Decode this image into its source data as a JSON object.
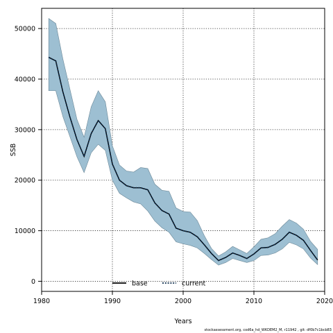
{
  "chart_data": {
    "type": "line",
    "title": "",
    "xlabel": "Years",
    "ylabel": "SSB",
    "xlim": [
      1980,
      2020
    ],
    "ylim": [
      -2000,
      54000
    ],
    "x_ticks": [
      1980,
      1990,
      2000,
      2010,
      2020
    ],
    "y_ticks": [
      0,
      10000,
      20000,
      30000,
      40000,
      50000
    ],
    "grid": true,
    "legend": {
      "placement": "bottom-center",
      "entries": [
        "base",
        "current"
      ]
    },
    "x": [
      1981,
      1982,
      1983,
      1984,
      1985,
      1986,
      1987,
      1988,
      1989,
      1990,
      1991,
      1992,
      1993,
      1994,
      1995,
      1996,
      1997,
      1998,
      1999,
      2000,
      2001,
      2002,
      2003,
      2004,
      2005,
      2006,
      2007,
      2008,
      2009,
      2010,
      2011,
      2012,
      2013,
      2014,
      2015,
      2016,
      2017,
      2018,
      2019
    ],
    "series": [
      {
        "name": "base",
        "style": "solid",
        "color": "#000000",
        "values": [
          44300,
          43600,
          37500,
          32500,
          28000,
          24700,
          29200,
          31800,
          30200,
          23200,
          20000,
          18900,
          18500,
          18500,
          18100,
          15500,
          14000,
          13300,
          10500,
          10000,
          9700,
          8800,
          7200,
          5500,
          4100,
          4700,
          5600,
          5100,
          4500,
          5400,
          6600,
          6700,
          7300,
          8300,
          9700,
          9100,
          8100,
          6100,
          4200
        ]
      },
      {
        "name": "current",
        "style": "dotted",
        "color": "#0a2a4a",
        "values": [
          44300,
          43600,
          37500,
          32500,
          28000,
          24700,
          29200,
          31800,
          30200,
          23200,
          20000,
          18900,
          18500,
          18500,
          18100,
          15500,
          14000,
          13300,
          10500,
          10000,
          9700,
          8800,
          7200,
          5500,
          4100,
          4700,
          5600,
          5100,
          4500,
          5400,
          6600,
          6700,
          7300,
          8300,
          9700,
          9100,
          8100,
          6100,
          4200
        ]
      },
      {
        "name": "",
        "role": "confidence-band-upper",
        "values": [
          52000,
          51000,
          44000,
          38000,
          32000,
          28500,
          34500,
          37700,
          35500,
          26800,
          23000,
          21800,
          21600,
          22500,
          22300,
          19200,
          18000,
          17800,
          14500,
          13800,
          13700,
          12000,
          9000,
          6500,
          5000,
          5800,
          6900,
          6200,
          5500,
          6800,
          8300,
          8600,
          9400,
          10900,
          12200,
          11500,
          10300,
          7900,
          6300
        ]
      },
      {
        "name": "",
        "role": "confidence-band-lower",
        "values": [
          37700,
          37700,
          32600,
          28600,
          24600,
          21500,
          25400,
          27100,
          25900,
          20000,
          17400,
          16500,
          15700,
          15300,
          13900,
          11900,
          10600,
          9700,
          7800,
          7400,
          7100,
          6600,
          5500,
          4300,
          3200,
          3700,
          4500,
          4100,
          3700,
          4100,
          5100,
          5200,
          5600,
          6400,
          7700,
          7200,
          6400,
          4600,
          3300
        ]
      }
    ],
    "band_color": "#9dbfd2",
    "band_edge_color": "#6a8797",
    "footer": "stockassessment.org, cod6a_hd_WKDEM2_M, r11942 , git: df0b7c1bcb83"
  }
}
